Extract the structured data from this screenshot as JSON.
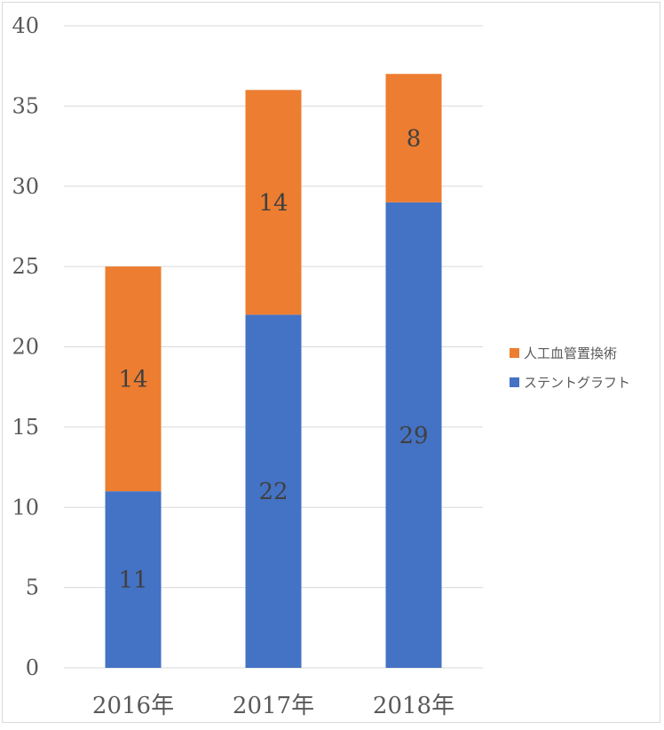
{
  "chart_data": {
    "type": "bar",
    "stacked": true,
    "categories": [
      "2016年",
      "2017年",
      "2018年"
    ],
    "series": [
      {
        "name": "ステントグラフト",
        "values": [
          11,
          22,
          29
        ],
        "color": "#4472C4"
      },
      {
        "name": "人工血管置換術",
        "values": [
          14,
          14,
          8
        ],
        "color": "#ED7D31"
      }
    ],
    "ylim": [
      0,
      40
    ],
    "yticks": [
      0,
      5,
      10,
      15,
      20,
      25,
      30,
      35,
      40
    ],
    "grid": true,
    "legend_position": "right",
    "legend_order": [
      "人工血管置換術",
      "ステントグラフト"
    ],
    "data_labels": true
  }
}
